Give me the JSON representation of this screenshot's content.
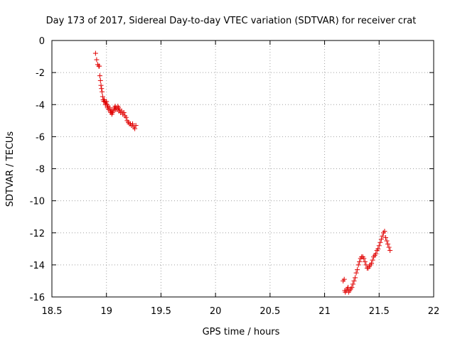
{
  "chart_data": {
    "type": "scatter",
    "title": "Day 173 of 2017, Sidereal Day-to-day VTEC variation (SDTVAR) for receiver crat",
    "xlabel": "GPS time / hours",
    "ylabel": "SDTVAR / TECUs",
    "xlim": [
      18.5,
      22
    ],
    "ylim": [
      -16,
      0
    ],
    "xticks": [
      18.5,
      19,
      19.5,
      20,
      20.5,
      21,
      21.5,
      22
    ],
    "yticks": [
      0,
      -2,
      -4,
      -6,
      -8,
      -10,
      -12,
      -14,
      -16
    ],
    "xtick_labels": [
      "18.5",
      "19",
      "19.5",
      "20",
      "20.5",
      "21",
      "21.5",
      "22"
    ],
    "ytick_labels": [
      "0",
      "-2",
      "-4",
      "-6",
      "-8",
      "-10",
      "-12",
      "-14",
      "-16"
    ],
    "grid": true,
    "marker": "+",
    "color": "#e00000",
    "series": [
      {
        "name": "SDTVAR",
        "x": [
          18.9,
          18.91,
          18.92,
          18.93,
          18.935,
          18.94,
          18.945,
          18.95,
          18.955,
          18.96,
          18.965,
          18.97,
          18.975,
          18.98,
          18.985,
          18.99,
          18.995,
          19.0,
          19.005,
          19.01,
          19.015,
          19.02,
          19.03,
          19.035,
          19.04,
          19.045,
          19.05,
          19.055,
          19.06,
          19.07,
          19.075,
          19.08,
          19.085,
          19.09,
          19.1,
          19.105,
          19.11,
          19.115,
          19.12,
          19.13,
          19.14,
          19.15,
          19.16,
          19.17,
          19.18,
          19.19,
          19.2,
          19.21,
          19.22,
          19.23,
          19.24,
          19.25,
          19.26,
          19.27,
          21.17,
          21.18,
          21.185,
          21.19,
          21.2,
          21.21,
          21.215,
          21.22,
          21.23,
          21.24,
          21.25,
          21.26,
          21.27,
          21.28,
          21.29,
          21.3,
          21.31,
          21.32,
          21.33,
          21.34,
          21.35,
          21.36,
          21.37,
          21.38,
          21.39,
          21.4,
          21.41,
          21.42,
          21.43,
          21.44,
          21.45,
          21.46,
          21.47,
          21.48,
          21.49,
          21.5,
          21.51,
          21.52,
          21.53,
          21.54,
          21.55,
          21.56,
          21.57,
          21.58,
          21.59,
          21.6
        ],
        "y": [
          -0.8,
          -1.2,
          -1.5,
          -1.6,
          -1.6,
          -2.2,
          -2.5,
          -2.8,
          -3.0,
          -3.2,
          -3.5,
          -3.7,
          -3.8,
          -3.7,
          -3.8,
          -4.0,
          -3.9,
          -3.8,
          -4.0,
          -4.2,
          -4.1,
          -4.3,
          -4.2,
          -4.4,
          -4.5,
          -4.4,
          -4.6,
          -4.5,
          -4.4,
          -4.3,
          -4.2,
          -4.1,
          -4.3,
          -4.2,
          -4.3,
          -4.1,
          -4.2,
          -4.4,
          -4.3,
          -4.5,
          -4.4,
          -4.6,
          -4.5,
          -4.7,
          -4.8,
          -5.0,
          -5.1,
          -5.2,
          -5.2,
          -5.3,
          -5.2,
          -5.4,
          -5.5,
          -5.3,
          -15.0,
          -14.9,
          -15.6,
          -15.7,
          -15.6,
          -15.5,
          -15.4,
          -15.7,
          -15.6,
          -15.5,
          -15.4,
          -15.2,
          -15.0,
          -14.8,
          -14.5,
          -14.3,
          -14.0,
          -13.8,
          -13.6,
          -13.5,
          -13.5,
          -13.6,
          -13.8,
          -14.0,
          -14.2,
          -14.2,
          -14.1,
          -14.0,
          -13.9,
          -13.7,
          -13.5,
          -13.4,
          -13.3,
          -13.1,
          -13.0,
          -12.8,
          -12.6,
          -12.4,
          -12.2,
          -12.0,
          -11.9,
          -12.3,
          -12.5,
          -12.7,
          -12.9,
          -13.1
        ]
      }
    ]
  }
}
